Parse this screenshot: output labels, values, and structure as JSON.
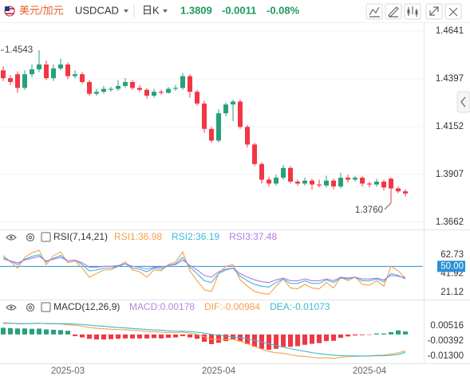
{
  "header": {
    "name": "美元/加元",
    "symbol": "USDCAD",
    "period": "日K",
    "price": "1.3809",
    "change": "-0.0011",
    "change_pct": "-0.08%"
  },
  "chart_data": [
    {
      "type": "candlestick",
      "categories": [
        null,
        null,
        null,
        null,
        null,
        null,
        null,
        null,
        null,
        "2025-03",
        null,
        null,
        null,
        null,
        null,
        null,
        null,
        null,
        null,
        null,
        null,
        null,
        null,
        null,
        null,
        null,
        null,
        null,
        null,
        null,
        "2025-04",
        null,
        null,
        null,
        null,
        null,
        null,
        null,
        null,
        null,
        null,
        null,
        null,
        null,
        null,
        null,
        null,
        null,
        null,
        null,
        null,
        "2025-04",
        null,
        null,
        null,
        null,
        null
      ],
      "open": [
        1.444,
        1.44,
        1.442,
        1.435,
        1.442,
        1.4445,
        1.447,
        1.44,
        1.445,
        1.447,
        1.441,
        1.442,
        1.438,
        1.432,
        1.433,
        1.434,
        1.4345,
        1.436,
        1.438,
        1.435,
        1.434,
        1.431,
        1.433,
        1.4325,
        1.4345,
        1.435,
        1.441,
        1.433,
        1.427,
        1.414,
        1.408,
        1.422,
        1.4265,
        1.428,
        1.415,
        1.406,
        1.396,
        1.388,
        1.386,
        1.389,
        1.394,
        1.387,
        1.386,
        1.3875,
        1.3855,
        1.385,
        1.3875,
        1.3845,
        1.389,
        1.388,
        1.389,
        1.386,
        1.3855,
        1.387,
        1.3885,
        1.3835,
        1.382
      ],
      "high": [
        1.446,
        1.4415,
        1.4435,
        1.444,
        1.447,
        1.4543,
        1.449,
        1.447,
        1.45,
        1.448,
        1.444,
        1.443,
        1.439,
        1.4345,
        1.436,
        1.4355,
        1.439,
        1.44,
        1.439,
        1.4365,
        1.435,
        1.4345,
        1.434,
        1.4355,
        1.4365,
        1.4425,
        1.442,
        1.434,
        1.4285,
        1.415,
        1.424,
        1.4275,
        1.429,
        1.429,
        1.416,
        1.407,
        1.397,
        1.3895,
        1.3905,
        1.3955,
        1.395,
        1.388,
        1.389,
        1.3885,
        1.388,
        1.39,
        1.3885,
        1.3915,
        1.3905,
        1.39,
        1.39,
        1.387,
        1.3885,
        1.388,
        1.389,
        1.3845,
        1.383
      ],
      "low": [
        1.4385,
        1.4365,
        1.4325,
        1.434,
        1.4405,
        1.443,
        1.439,
        1.4385,
        1.444,
        1.4395,
        1.44,
        1.437,
        1.431,
        1.431,
        1.432,
        1.433,
        1.4335,
        1.435,
        1.434,
        1.433,
        1.4295,
        1.43,
        1.4315,
        1.432,
        1.4335,
        1.434,
        1.43,
        1.426,
        1.412,
        1.407,
        1.407,
        1.4205,
        1.418,
        1.414,
        1.4045,
        1.395,
        1.386,
        1.3845,
        1.385,
        1.388,
        1.386,
        1.385,
        1.385,
        1.383,
        1.384,
        1.384,
        1.383,
        1.3835,
        1.3865,
        1.387,
        1.3845,
        1.384,
        1.3845,
        1.3825,
        1.376,
        1.381,
        1.3795
      ],
      "close": [
        1.44,
        1.438,
        1.435,
        1.442,
        1.4445,
        1.447,
        1.44,
        1.445,
        1.447,
        1.441,
        1.442,
        1.438,
        1.432,
        1.433,
        1.4345,
        1.4345,
        1.436,
        1.438,
        1.435,
        1.434,
        1.431,
        1.433,
        1.4325,
        1.4345,
        1.435,
        1.441,
        1.433,
        1.427,
        1.414,
        1.408,
        1.422,
        1.4265,
        1.428,
        1.415,
        1.406,
        1.396,
        1.388,
        1.386,
        1.389,
        1.394,
        1.387,
        1.386,
        1.3875,
        1.3855,
        1.385,
        1.3875,
        1.3845,
        1.389,
        1.388,
        1.389,
        1.386,
        1.3855,
        1.387,
        1.384,
        1.3835,
        1.382,
        1.3809
      ],
      "up_color": "#26a17a",
      "down_color": "#f23645",
      "min_label": "1.3760",
      "ylim": [
        1.3629,
        1.4686
      ],
      "yticks": [
        1.3662,
        1.3907,
        1.4152,
        1.4397,
        1.4641
      ],
      "grid": true
    },
    {
      "type": "line",
      "title": "RSI(7,14,21)",
      "series": [
        {
          "name": "RSI1:36.98",
          "color": "#f5a04a",
          "values": [
            62,
            55,
            48,
            60,
            65,
            68,
            52,
            62,
            66,
            54,
            56,
            48,
            38,
            42,
            46,
            46,
            50,
            55,
            46,
            44,
            38,
            46,
            45,
            52,
            55,
            66,
            45,
            34,
            24,
            22,
            42,
            50,
            52,
            35,
            28,
            22,
            20,
            19,
            28,
            36,
            26,
            25,
            30,
            26,
            25,
            32,
            26,
            38,
            34,
            38,
            30,
            29,
            34,
            28,
            50,
            45,
            36.98
          ]
        },
        {
          "name": "RSI2:36.19",
          "color": "#3cb9d4",
          "values": [
            60,
            56,
            52,
            58,
            61,
            63,
            55,
            59,
            62,
            56,
            57,
            52,
            45,
            46,
            48,
            48,
            50,
            53,
            48,
            47,
            44,
            48,
            47,
            51,
            53,
            60,
            49,
            42,
            34,
            32,
            42,
            46,
            48,
            39,
            34,
            30,
            28,
            27,
            32,
            36,
            31,
            31,
            34,
            31,
            31,
            35,
            32,
            37,
            36,
            38,
            34,
            34,
            36,
            33,
            42,
            40,
            36.19
          ]
        },
        {
          "name": "RSI3:37.48",
          "color": "#b07ae0",
          "values": [
            58,
            56,
            54,
            57,
            59,
            61,
            56,
            58,
            60,
            56,
            57,
            54,
            49,
            49,
            50,
            50,
            51,
            53,
            50,
            49,
            47,
            49,
            49,
            51,
            52,
            57,
            51,
            46,
            40,
            38,
            44,
            47,
            48,
            42,
            38,
            35,
            33,
            32,
            35,
            37,
            34,
            34,
            36,
            34,
            34,
            36,
            34,
            38,
            37,
            38,
            36,
            36,
            37,
            35,
            40,
            39,
            37.48
          ]
        }
      ],
      "reference_value": 50,
      "reference_color": "#2b8fd6",
      "ylim": [
        14,
        76
      ],
      "yticks": [
        21.12,
        41.92,
        {
          "value": 50,
          "label": "50.00"
        },
        62.73
      ]
    },
    {
      "type": "macd",
      "title": "MACD(12,26,9)",
      "series": [
        {
          "name": "MACD:0.00178",
          "color": "#b38be0",
          "up_color": "#26a17a",
          "down_color": "#f23645",
          "values": [
            0.004,
            0.0038,
            0.0036,
            0.0036,
            0.0034,
            0.0035,
            0.003,
            0.0028,
            0.0026,
            0.0022,
            -0.001,
            -0.0018,
            -0.0026,
            -0.003,
            -0.003,
            -0.0028,
            -0.0026,
            -0.0024,
            -0.0024,
            -0.0024,
            -0.0024,
            -0.0022,
            -0.0024,
            -0.002,
            -0.0018,
            -0.001,
            -0.0018,
            -0.0026,
            -0.0044,
            -0.0058,
            -0.005,
            -0.004,
            -0.003,
            -0.0042,
            -0.0058,
            -0.0074,
            -0.0086,
            -0.0092,
            -0.0086,
            -0.0074,
            -0.0074,
            -0.007,
            -0.0062,
            -0.0056,
            -0.0052,
            -0.004,
            -0.0038,
            -0.002,
            -0.0012,
            -0.0006,
            -0.0004,
            -0.0002,
            0.0006,
            0.0006,
            0.0014,
            0.0024,
            0.00178
          ]
        },
        {
          "name": "DIF:-0.00984",
          "color": "#f5a04a",
          "values": [
            0.007,
            0.0068,
            0.0064,
            0.0064,
            0.0066,
            0.0068,
            0.0064,
            0.0063,
            0.0063,
            0.0058,
            0.0055,
            0.005,
            0.0042,
            0.0037,
            0.0034,
            0.0031,
            0.0029,
            0.0028,
            0.0025,
            0.0022,
            0.0018,
            0.0016,
            0.0013,
            0.0012,
            0.0011,
            0.0014,
            0.0008,
            0.0,
            -0.0014,
            -0.0028,
            -0.003,
            -0.003,
            -0.0029,
            -0.004,
            -0.0055,
            -0.0072,
            -0.0088,
            -0.0102,
            -0.011,
            -0.0113,
            -0.0122,
            -0.0129,
            -0.0132,
            -0.0137,
            -0.0141,
            -0.014,
            -0.0143,
            -0.0137,
            -0.0134,
            -0.0131,
            -0.013,
            -0.0129,
            -0.0125,
            -0.0124,
            -0.0118,
            -0.011,
            -0.00984
          ]
        },
        {
          "name": "DEA:-0.01073",
          "color": "#3cb9d4",
          "values": [
            0.0066,
            0.0066,
            0.0066,
            0.0065,
            0.0065,
            0.0066,
            0.0066,
            0.0065,
            0.0065,
            0.0064,
            0.0062,
            0.006,
            0.0056,
            0.0052,
            0.0049,
            0.0045,
            0.0042,
            0.0039,
            0.0036,
            0.0033,
            0.003,
            0.0027,
            0.0025,
            0.0022,
            0.002,
            0.0019,
            0.0017,
            0.0013,
            0.0008,
            0.0001,
            -0.0005,
            -0.001,
            -0.0014,
            -0.0019,
            -0.0026,
            -0.0035,
            -0.0045,
            -0.0056,
            -0.0067,
            -0.0076,
            -0.0085,
            -0.0094,
            -0.0101,
            -0.0109,
            -0.0115,
            -0.012,
            -0.0124,
            -0.0127,
            -0.0128,
            -0.0129,
            -0.0129,
            -0.0129,
            -0.0128,
            -0.0127,
            -0.0125,
            -0.012,
            -0.01073
          ]
        }
      ],
      "ylim": [
        -0.0168,
        0.01185
      ],
      "yticks": [
        {
          "value": -0.013,
          "label": "-0.01300"
        },
        -0.00392,
        0.00516
      ]
    }
  ]
}
